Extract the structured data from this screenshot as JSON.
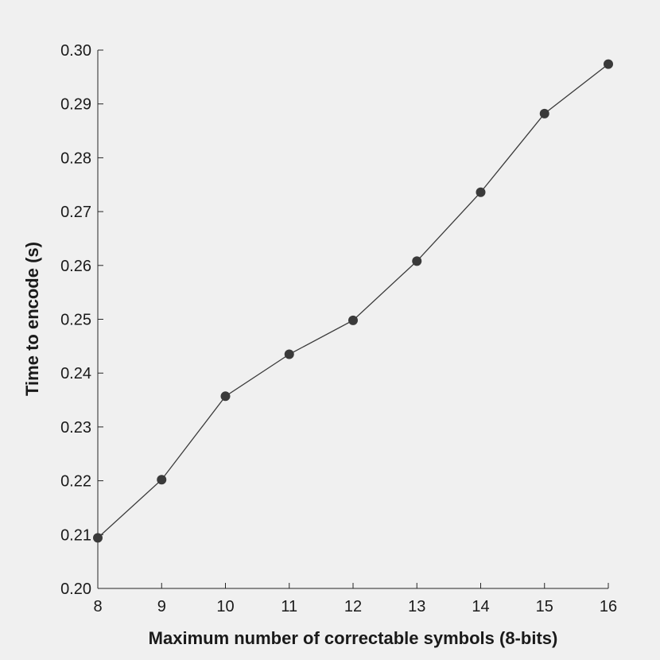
{
  "chart_data": {
    "type": "line",
    "title": "",
    "xlabel": "Maximum number of correctable symbols (8-bits)",
    "ylabel": "Time to encode (s)",
    "xlim": [
      8,
      16
    ],
    "ylim": [
      0.2,
      0.3
    ],
    "x_ticks": [
      8,
      9,
      10,
      11,
      12,
      13,
      14,
      15,
      16
    ],
    "y_ticks": [
      "0.20",
      "0.21",
      "0.22",
      "0.23",
      "0.24",
      "0.25",
      "0.26",
      "0.27",
      "0.28",
      "0.29",
      "0.30"
    ],
    "grid": false,
    "series": [
      {
        "x": [
          8,
          9,
          10,
          11,
          12,
          13,
          14,
          15,
          16
        ],
        "values": [
          0.2094,
          0.2202,
          0.2357,
          0.2435,
          0.2498,
          0.2608,
          0.2736,
          0.2882,
          0.2974
        ],
        "color": "#3a3a3a"
      }
    ]
  }
}
